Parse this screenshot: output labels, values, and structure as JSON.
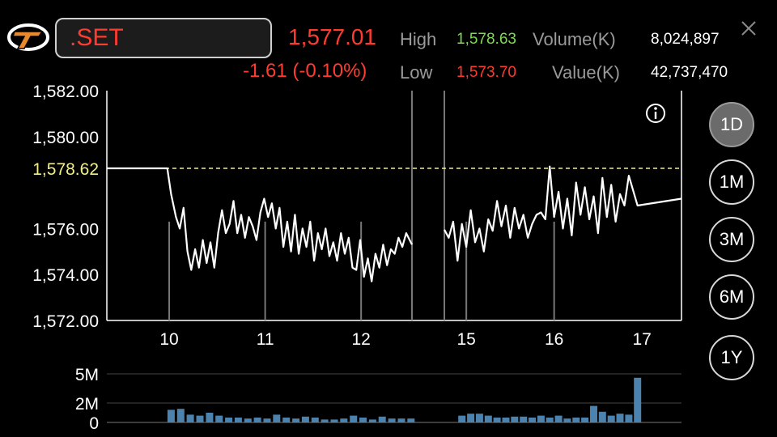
{
  "header": {
    "symbol": ".SET",
    "last_price": "1,577.01",
    "change": "-1.61 (-0.10%)",
    "high_label": "High",
    "high_value": "1,578.63",
    "low_label": "Low",
    "low_value": "1,573.70",
    "volume_label": "Volume(K)",
    "volume_value": "8,024,897",
    "value_label": "Value(K)",
    "value_value": "42,737,470"
  },
  "colors": {
    "up": "#7ddc4f",
    "down": "#ff3b30",
    "prev_close_line": "#f2ee8c",
    "volume_bar": "#4b82ae",
    "line": "#ffffff"
  },
  "icons": {
    "logo": "set-logo",
    "info": "info-icon",
    "close": "close-icon"
  },
  "range_buttons": [
    "1D",
    "1M",
    "3M",
    "6M",
    "1Y"
  ],
  "selected_range": "1D",
  "chart_data": [
    {
      "type": "line",
      "y_ticks": [
        "1,582.00",
        "1,580.00",
        "1,576.00",
        "1,574.00",
        "1,572.00"
      ],
      "y_tick_values": [
        1582,
        1580,
        1576,
        1574,
        1572
      ],
      "reference_label": "1,578.62",
      "reference_value": 1578.62,
      "ylim": [
        1572,
        1582
      ],
      "xlim": [
        9.25,
        17.0
      ],
      "x_ticks": [
        "10",
        "11",
        "12",
        "15",
        "16",
        "17"
      ],
      "x_tick_values": [
        9.9,
        10.9,
        11.9,
        14.55,
        15.55,
        16.55
      ],
      "session_break": [
        12.43,
        14.3
      ],
      "grid": "vertical",
      "series": [
        {
          "x": [
            9.25,
            9.88,
            9.92,
            9.97,
            10.01,
            10.05,
            10.09,
            10.13,
            10.17,
            10.21,
            10.25,
            10.29,
            10.33,
            10.37,
            10.41,
            10.45,
            10.49,
            10.53,
            10.57,
            10.61,
            10.65,
            10.69,
            10.73,
            10.77,
            10.81,
            10.85,
            10.89,
            10.93,
            10.97,
            11.01,
            11.05,
            11.09,
            11.13,
            11.17,
            11.21,
            11.25,
            11.29,
            11.33,
            11.37,
            11.41,
            11.45,
            11.49,
            11.53,
            11.57,
            11.61,
            11.65,
            11.69,
            11.73,
            11.77,
            11.81,
            11.85,
            11.89,
            11.93,
            11.97,
            12.01,
            12.05,
            12.09,
            12.13,
            12.17,
            12.21,
            12.25,
            12.29,
            12.33,
            12.37,
            12.43,
            14.3,
            14.35,
            14.4,
            14.45,
            14.5,
            14.55,
            14.6,
            14.65,
            14.7,
            14.75,
            14.8,
            14.85,
            14.9,
            14.95,
            15.0,
            15.05,
            15.1,
            15.15,
            15.2,
            15.25,
            15.3,
            15.35,
            15.4,
            15.45,
            15.5,
            15.55,
            15.6,
            15.65,
            15.7,
            15.75,
            15.8,
            15.85,
            15.9,
            15.95,
            16.0,
            16.05,
            16.1,
            16.15,
            16.2,
            16.25,
            16.3,
            16.35,
            16.4,
            16.5,
            17.0
          ],
          "values": [
            1578.62,
            1578.62,
            1577.5,
            1576.5,
            1576.0,
            1576.9,
            1575.0,
            1574.2,
            1575.1,
            1574.3,
            1575.5,
            1574.5,
            1575.4,
            1574.3,
            1575.8,
            1576.8,
            1575.8,
            1576.2,
            1577.2,
            1575.8,
            1576.6,
            1575.6,
            1576.5,
            1576.1,
            1575.5,
            1576.7,
            1577.3,
            1576.5,
            1577.1,
            1576.0,
            1576.9,
            1575.2,
            1576.3,
            1575.0,
            1576.6,
            1574.9,
            1576.0,
            1575.2,
            1576.3,
            1574.6,
            1575.8,
            1575.1,
            1576.0,
            1574.8,
            1575.4,
            1574.6,
            1575.8,
            1574.9,
            1575.6,
            1574.3,
            1574.2,
            1575.5,
            1573.9,
            1574.7,
            1573.7,
            1574.9,
            1574.3,
            1575.3,
            1574.4,
            1575.1,
            1574.9,
            1575.6,
            1575.2,
            1575.8,
            1575.3,
            1575.95,
            1575.6,
            1576.3,
            1574.6,
            1576.2,
            1575.2,
            1576.8,
            1575.4,
            1576.0,
            1575.0,
            1576.4,
            1575.9,
            1577.2,
            1576.1,
            1577.0,
            1575.6,
            1576.9,
            1576.0,
            1576.6,
            1575.6,
            1576.2,
            1576.6,
            1576.7,
            1576.4,
            1578.7,
            1576.5,
            1577.6,
            1576.0,
            1577.3,
            1575.7,
            1578.0,
            1576.6,
            1577.8,
            1576.4,
            1577.4,
            1575.8,
            1578.2,
            1576.5,
            1577.9,
            1576.3,
            1577.5,
            1577.0,
            1578.3,
            1577.0,
            1577.3
          ]
        }
      ]
    },
    {
      "type": "bar",
      "y_ticks": [
        "5M",
        "2M",
        "0"
      ],
      "y_tick_values": [
        5,
        2,
        0
      ],
      "ylim": [
        0,
        5
      ],
      "series": [
        {
          "x": [
            9.92,
            10.02,
            10.12,
            10.22,
            10.32,
            10.42,
            10.52,
            10.62,
            10.72,
            10.82,
            10.92,
            11.02,
            11.12,
            11.22,
            11.32,
            11.42,
            11.52,
            11.62,
            11.72,
            11.82,
            11.92,
            12.02,
            12.12,
            12.22,
            12.32,
            12.42,
            14.5,
            14.6,
            14.7,
            14.8,
            14.9,
            15.0,
            15.1,
            15.2,
            15.3,
            15.4,
            15.5,
            15.6,
            15.7,
            15.8,
            15.9,
            16.0,
            16.1,
            16.2,
            16.3,
            16.4,
            16.5
          ],
          "values": [
            1.3,
            1.4,
            0.8,
            0.7,
            1.0,
            0.7,
            0.5,
            0.5,
            0.4,
            0.5,
            0.4,
            0.8,
            0.5,
            0.4,
            0.6,
            0.5,
            0.3,
            0.3,
            0.4,
            0.7,
            0.5,
            0.3,
            0.6,
            0.4,
            0.4,
            0.4,
            0.7,
            0.9,
            0.9,
            0.7,
            0.5,
            0.5,
            0.6,
            0.6,
            0.5,
            0.7,
            0.5,
            0.7,
            0.4,
            0.5,
            0.5,
            1.7,
            1.1,
            0.7,
            0.9,
            0.8,
            4.6
          ]
        }
      ]
    }
  ]
}
